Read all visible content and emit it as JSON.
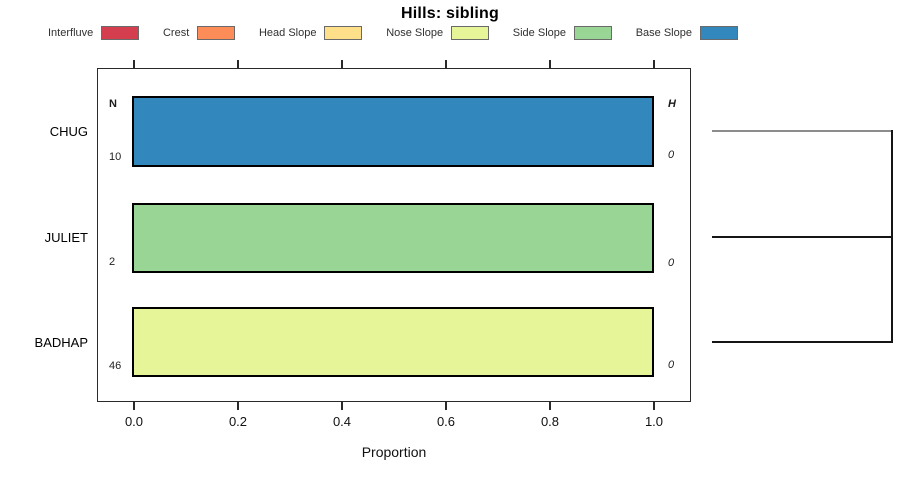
{
  "chart_data": {
    "type": "bar",
    "orientation": "horizontal",
    "title": "Hills: sibling",
    "xlabel": "Proportion",
    "xlim": [
      0,
      1
    ],
    "x_ticks": [
      "0.0",
      "0.2",
      "0.4",
      "0.6",
      "0.8",
      "1.0"
    ],
    "grid": false,
    "left_column_header": "N",
    "right_column_header": "H",
    "categories": [
      "CHUG",
      "JULIET",
      "BADHAP"
    ],
    "series": [
      {
        "name": "CHUG",
        "hillslope_position": "Base Slope",
        "proportion": 1.0,
        "n": "10",
        "h": "0",
        "color": "#3288BD"
      },
      {
        "name": "JULIET",
        "hillslope_position": "Side Slope",
        "proportion": 1.0,
        "n": "2",
        "h": "0",
        "color": "#99D594"
      },
      {
        "name": "BADHAP",
        "hillslope_position": "Nose Slope",
        "proportion": 1.0,
        "n": "46",
        "h": "0",
        "color": "#E6F598"
      }
    ],
    "legend": [
      {
        "label": "Interfluve",
        "color": "#D53E4F"
      },
      {
        "label": "Crest",
        "color": "#FC8D59"
      },
      {
        "label": "Head Slope",
        "color": "#FEE08B"
      },
      {
        "label": "Nose Slope",
        "color": "#E6F598"
      },
      {
        "label": "Side Slope",
        "color": "#99D594"
      },
      {
        "label": "Base Slope",
        "color": "#3288BD"
      }
    ],
    "legend_position": "top",
    "dendrogram": {
      "position": "right",
      "leaves": [
        "CHUG",
        "JULIET",
        "BADHAP"
      ],
      "description": "three horizontal links, one per series, joining a single vertical link at equal maximum height"
    }
  }
}
